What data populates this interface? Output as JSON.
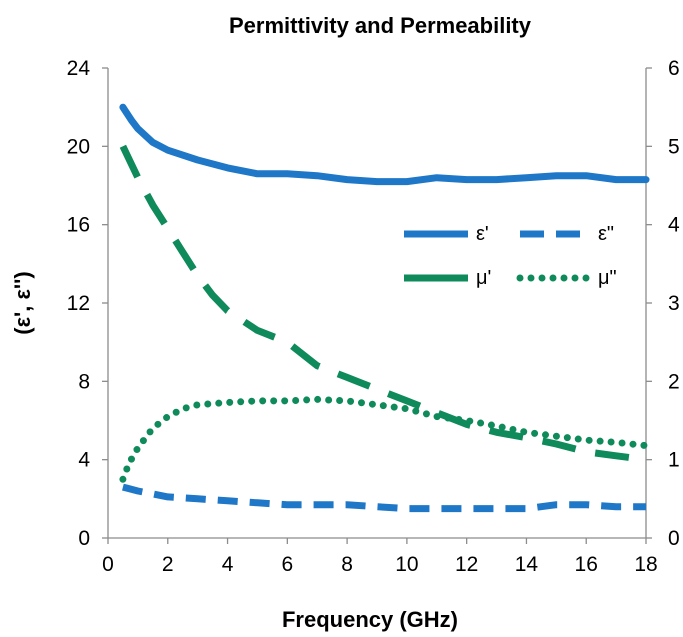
{
  "chart_data": {
    "type": "line",
    "title": "Permittivity and Permeability",
    "xlabel": "Frequency (GHz)",
    "ylabel": "(ε', ε'')",
    "y2label": "",
    "xlim": [
      0,
      18
    ],
    "ylim": [
      0,
      24
    ],
    "y2lim": [
      0,
      6
    ],
    "xticks": [
      0,
      2,
      4,
      6,
      8,
      10,
      12,
      14,
      16,
      18
    ],
    "yticks": [
      0,
      4,
      8,
      12,
      16,
      20,
      24
    ],
    "y2ticks": [
      0,
      1,
      2,
      3,
      4,
      5,
      6
    ],
    "grid": false,
    "legend_position": "right, inside plot",
    "colors": {
      "blue": "#1f77c8",
      "green": "#0f8a5a"
    },
    "series": [
      {
        "name": "ε'",
        "axis": "left",
        "color": "#1f77c8",
        "style": "solid",
        "x": [
          0.5,
          0.8,
          1,
          1.5,
          2,
          3,
          4,
          5,
          6,
          7,
          8,
          9,
          10,
          11,
          12,
          13,
          14,
          15,
          16,
          17,
          18
        ],
        "y": [
          22.0,
          21.3,
          20.9,
          20.2,
          19.8,
          19.3,
          18.9,
          18.6,
          18.6,
          18.5,
          18.3,
          18.2,
          18.2,
          18.4,
          18.3,
          18.3,
          18.4,
          18.5,
          18.5,
          18.3,
          18.3
        ]
      },
      {
        "name": "ε\"",
        "axis": "left",
        "color": "#1f77c8",
        "style": "dashed",
        "x": [
          0.5,
          1,
          2,
          3,
          4,
          5,
          6,
          7,
          8,
          9,
          10,
          11,
          12,
          13,
          14,
          15,
          16,
          17,
          18
        ],
        "y": [
          2.6,
          2.4,
          2.1,
          2.0,
          1.9,
          1.8,
          1.7,
          1.7,
          1.7,
          1.6,
          1.5,
          1.5,
          1.5,
          1.5,
          1.5,
          1.7,
          1.7,
          1.6,
          1.6
        ]
      },
      {
        "name": "μ'",
        "axis": "right",
        "color": "#0f8a5a",
        "style": "long-dash",
        "x": [
          0.5,
          1,
          1.5,
          2,
          2.5,
          3,
          3.5,
          4,
          5,
          6,
          7,
          8,
          9,
          10,
          11,
          12,
          13,
          14,
          15,
          16,
          17,
          18
        ],
        "y": [
          5.0,
          4.6,
          4.25,
          3.95,
          3.65,
          3.35,
          3.1,
          2.9,
          2.65,
          2.5,
          2.2,
          2.05,
          1.9,
          1.75,
          1.6,
          1.45,
          1.35,
          1.28,
          1.2,
          1.1,
          1.05,
          1.0
        ]
      },
      {
        "name": "μ\"",
        "axis": "right",
        "color": "#0f8a5a",
        "style": "dotted",
        "x": [
          0.5,
          0.7,
          1,
          1.5,
          2,
          2.5,
          3,
          4,
          5,
          6,
          7,
          8,
          9,
          10,
          11,
          12,
          13,
          14,
          15,
          16,
          17,
          18
        ],
        "y": [
          0.75,
          0.95,
          1.15,
          1.4,
          1.55,
          1.65,
          1.7,
          1.73,
          1.75,
          1.75,
          1.77,
          1.75,
          1.7,
          1.65,
          1.55,
          1.5,
          1.43,
          1.35,
          1.3,
          1.25,
          1.22,
          1.18
        ]
      }
    ]
  }
}
